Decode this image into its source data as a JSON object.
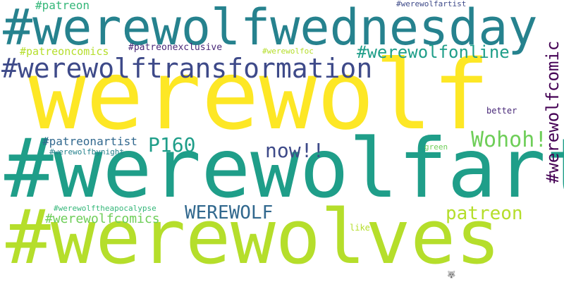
{
  "palette": {
    "yellow": "#fde725",
    "lime": "#b5de2b",
    "green": "#6ece58",
    "seagreen": "#35b779",
    "teal": "#1f9e89",
    "cyan_teal": "#26828e",
    "blue": "#31688e",
    "indigo": "#3e4a89",
    "purple": "#482878",
    "deep_purple": "#440154"
  },
  "words": [
    {
      "text": "werewolf",
      "color": "#fde725"
    },
    {
      "text": "#werewolfart",
      "color": "#1f9e89"
    },
    {
      "text": "#werewolves",
      "color": "#b5de2b"
    },
    {
      "text": "#werewolfwednesday",
      "color": "#26828e"
    },
    {
      "text": "#werewolftransformation",
      "color": "#3e4a89"
    },
    {
      "text": "#werewolfonline",
      "color": "#1f9e89"
    },
    {
      "text": "#werewolfcomic",
      "color": "#440154"
    },
    {
      "text": "Wohoh!",
      "color": "#6ece58"
    },
    {
      "text": "now!!",
      "color": "#3e4a89"
    },
    {
      "text": "P160",
      "color": "#1f9e89"
    },
    {
      "text": "WEREWOLF",
      "color": "#31688e"
    },
    {
      "text": "patreon",
      "color": "#b5de2b"
    },
    {
      "text": "#werewolfcomics",
      "color": "#6ece58"
    },
    {
      "text": "#patreonartist",
      "color": "#31688e"
    },
    {
      "text": "#patreon",
      "color": "#35b779"
    },
    {
      "text": "#patreoncomics",
      "color": "#b5de2b"
    },
    {
      "text": "#patreonexclusive",
      "color": "#482878"
    },
    {
      "text": "#werewolfoc",
      "color": "#b5de2b"
    },
    {
      "text": "#werewolfartist",
      "color": "#3e4a89"
    },
    {
      "text": "better",
      "color": "#482878"
    },
    {
      "text": "#werewolfbynight",
      "color": "#26828e"
    },
    {
      "text": "green",
      "color": "#6ece58"
    },
    {
      "text": "#werewolftheapocalypse",
      "color": "#35b779"
    },
    {
      "text": "like",
      "color": "#b5de2b"
    },
    {
      "text": "🐺",
      "color": "#3e4a89"
    }
  ]
}
